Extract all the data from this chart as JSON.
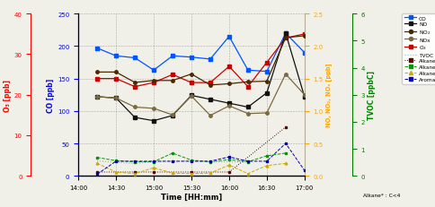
{
  "xlabel": "Time [HH:mm]",
  "ylabel_o3": "O₃ [ppb]",
  "ylabel_co": "CO [ppb]",
  "ylabel_nox": "NO, NO₂, NOₓ [ppb]",
  "ylabel_tvoc": "TVOC [ppbC]",
  "time_labels": [
    "14:00",
    "14:30",
    "15:00",
    "15:30",
    "16:00",
    "16:30",
    "17:00"
  ],
  "time_ticks": [
    0,
    1,
    2,
    3,
    4,
    5,
    6
  ],
  "t": [
    0.5,
    1.0,
    1.5,
    2.0,
    2.5,
    3.0,
    3.5,
    4.0,
    4.5,
    5.0,
    5.5,
    6.0
  ],
  "CO": [
    197,
    185,
    182,
    163,
    185,
    183,
    180,
    215,
    163,
    161,
    220,
    190
  ],
  "O3": [
    24,
    24,
    22,
    23,
    25,
    23,
    23,
    27,
    22,
    28,
    34,
    35
  ],
  "NO": [
    1.22,
    1.2,
    0.9,
    0.85,
    0.93,
    1.24,
    1.18,
    1.12,
    1.06,
    1.28,
    2.2,
    1.22
  ],
  "NO2": [
    1.6,
    1.6,
    1.44,
    1.47,
    1.47,
    1.57,
    1.4,
    1.42,
    1.45,
    1.46,
    2.13,
    2.16
  ],
  "NOx": [
    1.22,
    1.2,
    1.06,
    1.04,
    0.94,
    1.23,
    0.93,
    1.08,
    0.96,
    0.97,
    1.57,
    1.25
  ],
  "Alkane_s_t": [
    0.5,
    1.5,
    2.0,
    3.0,
    4.0,
    5.5
  ],
  "Alkane_s_v": [
    0.14,
    0.14,
    0.14,
    0.14,
    0.14,
    1.8
  ],
  "Alkane_t": [
    0.5,
    1.0,
    1.5,
    2.0,
    2.5,
    3.0,
    3.5,
    4.0,
    4.5,
    5.0,
    5.5
  ],
  "Alkane_v": [
    0.68,
    0.56,
    0.52,
    0.52,
    0.84,
    0.58,
    0.52,
    0.6,
    0.52,
    0.74,
    0.84
  ],
  "Alkene_t": [
    0.5,
    1.0,
    1.5,
    2.0,
    2.5,
    3.0,
    3.5,
    4.0,
    4.5,
    5.0,
    5.5
  ],
  "Alkene_v": [
    0.46,
    0.14,
    0.08,
    0.3,
    0.1,
    0.08,
    0.1,
    0.4,
    0.08,
    0.38,
    0.46
  ],
  "Aromatic_t": [
    0.5,
    1.0,
    1.5,
    2.0,
    2.5,
    3.0,
    3.5,
    4.0,
    4.5,
    5.0,
    5.5,
    6.0
  ],
  "Aromatic_v": [
    0.06,
    0.54,
    0.54,
    0.54,
    0.54,
    0.54,
    0.54,
    0.7,
    0.54,
    0.54,
    1.2,
    0.2
  ],
  "TVOC_t": [
    0.5,
    1.5,
    2.0,
    3.0,
    3.5,
    4.0,
    4.5
  ],
  "TVOC_v": [
    0.55,
    0.45,
    0.52,
    0.55,
    0.52,
    0.52,
    0.5
  ],
  "CO_lim": [
    0,
    250
  ],
  "O3_lim": [
    0,
    40
  ],
  "NOx_lim": [
    0,
    2.5
  ],
  "TVOC_lim": [
    0,
    6
  ],
  "c_CO": "#0055ff",
  "c_NO": "#111111",
  "c_NO2": "#4a2800",
  "c_NOx": "#7a6a40",
  "c_O3": "#cc0000",
  "c_TVOC": "#aaaaaa",
  "c_Alkane_s": "#660000",
  "c_Alkane": "#009900",
  "c_Alkene": "#ccaa00",
  "c_Aromatic": "#0000bb",
  "bg": "#f0f0e8"
}
